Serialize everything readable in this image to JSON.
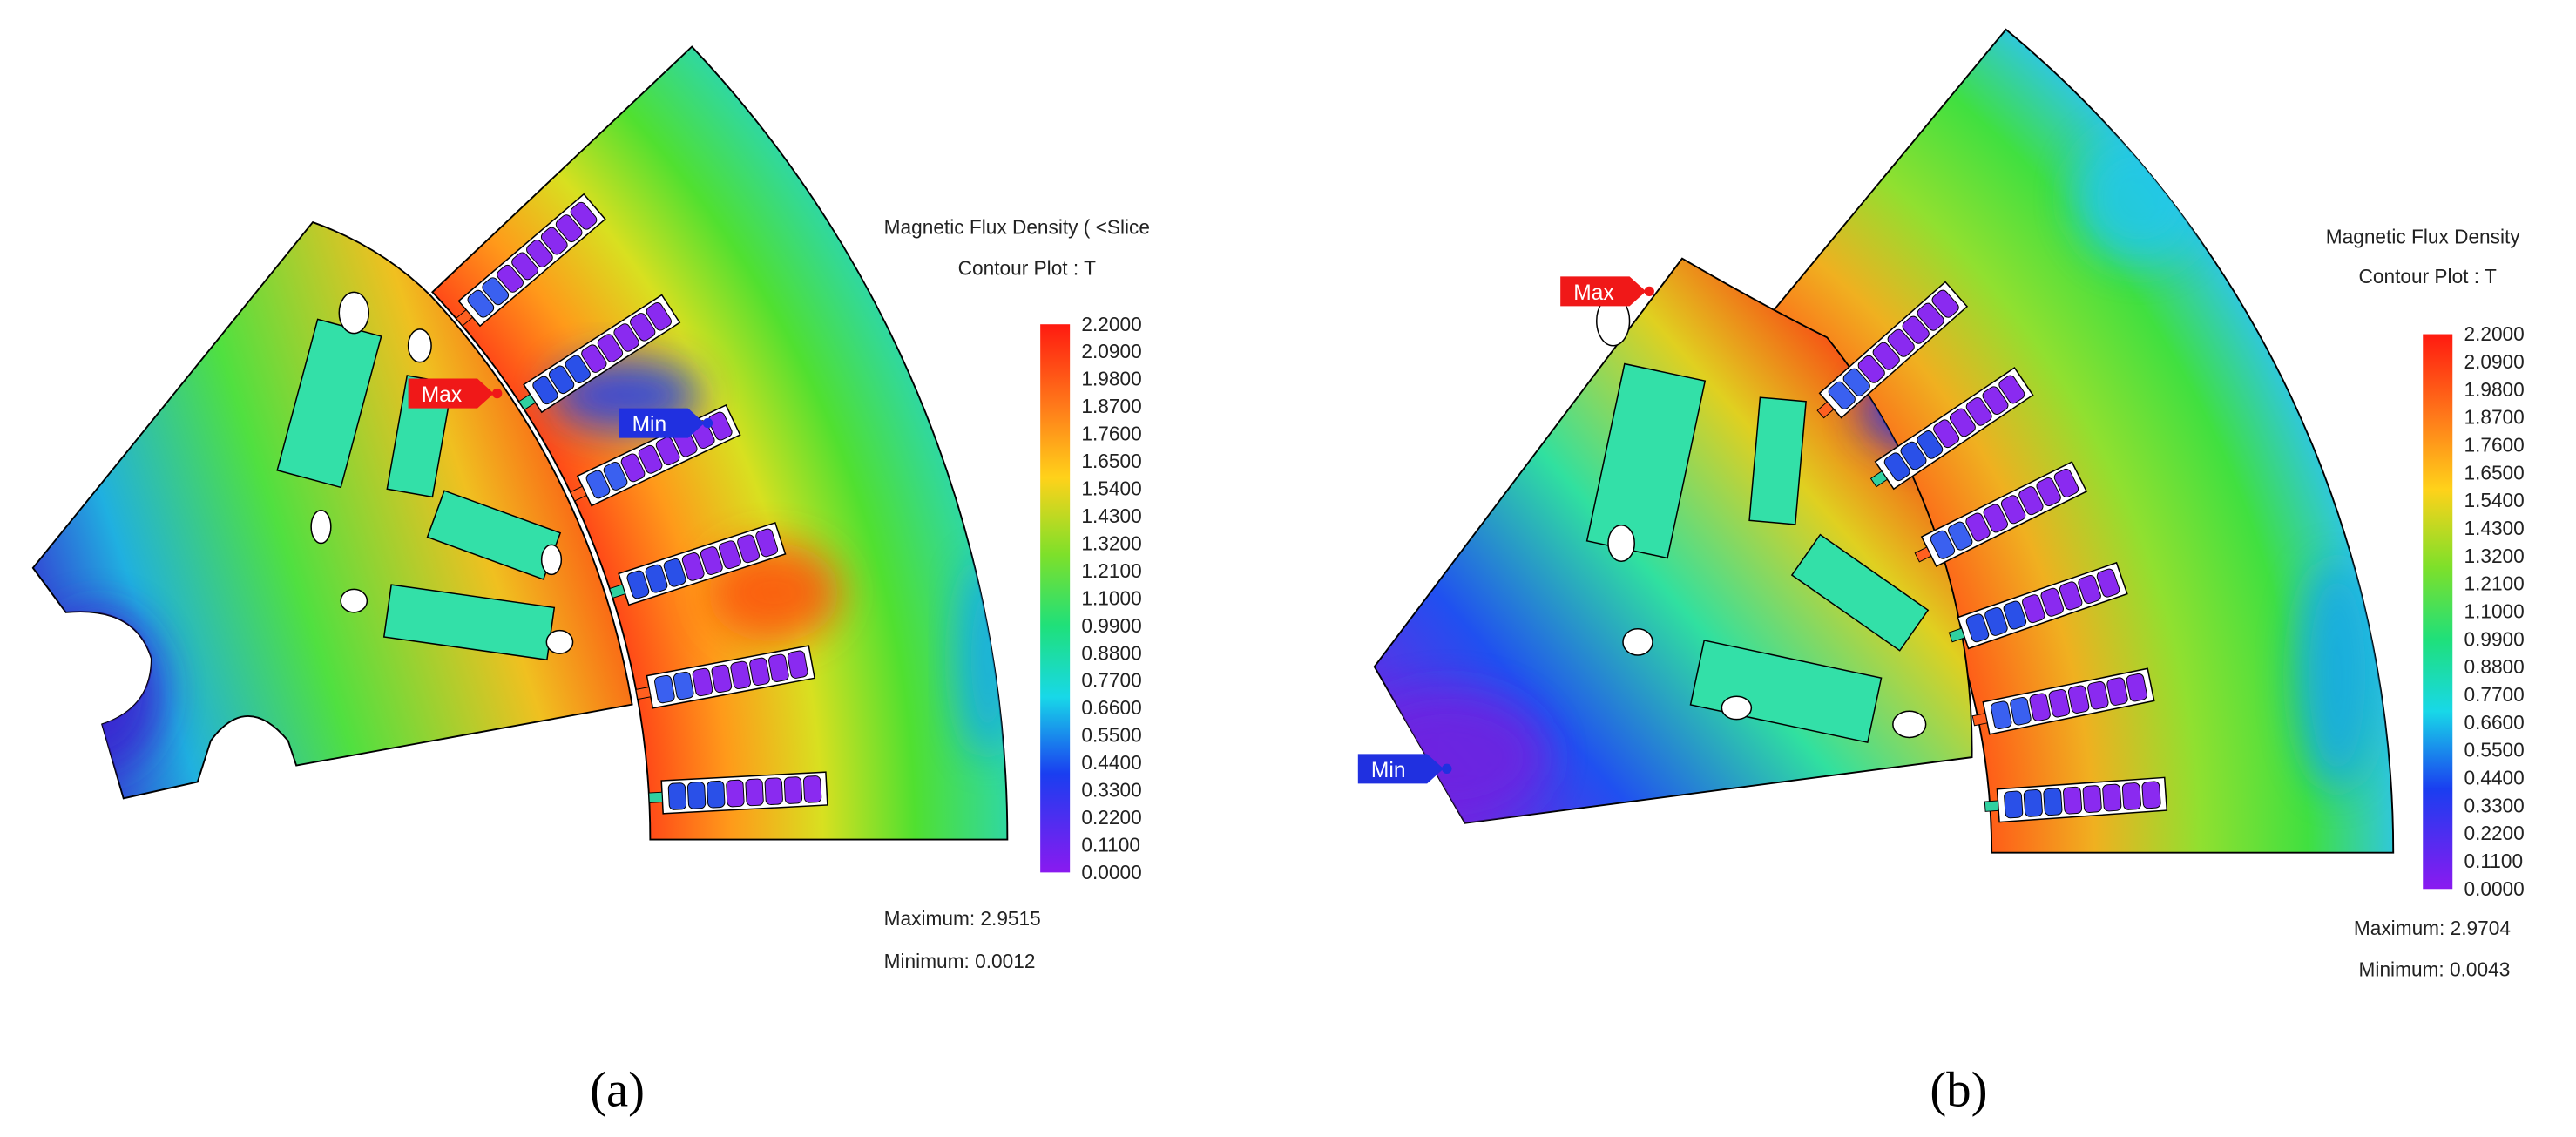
{
  "panels": [
    {
      "caption": "(a)",
      "legend": {
        "title": "Magnetic Flux Density ( <Slice",
        "unit_line": "Contour Plot : T",
        "scale": [
          "2.2000",
          "2.0900",
          "1.9800",
          "1.8700",
          "1.7600",
          "1.6500",
          "1.5400",
          "1.4300",
          "1.3200",
          "1.2100",
          "1.1000",
          "0.9900",
          "0.8800",
          "0.7700",
          "0.6600",
          "0.5500",
          "0.4400",
          "0.3300",
          "0.2200",
          "0.1100",
          "0.0000"
        ],
        "maximum": "Maximum: 2.9515",
        "minimum": "Minimum: 0.0012"
      },
      "markers": {
        "max": "Max",
        "min": "Min"
      }
    },
    {
      "caption": "(b)",
      "legend": {
        "title": "Magnetic Flux Density",
        "unit_line": "Contour Plot : T",
        "scale": [
          "2.2000",
          "2.0900",
          "1.9800",
          "1.8700",
          "1.7600",
          "1.6500",
          "1.5400",
          "1.4300",
          "1.3200",
          "1.2100",
          "1.1000",
          "0.9900",
          "0.8800",
          "0.7700",
          "0.6600",
          "0.5500",
          "0.4400",
          "0.3300",
          "0.2200",
          "0.1100",
          "0.0000"
        ],
        "maximum": "Maximum: 2.9704",
        "minimum": "Minimum: 0.0043"
      },
      "markers": {
        "max": "Max",
        "min": "Min"
      }
    }
  ]
}
